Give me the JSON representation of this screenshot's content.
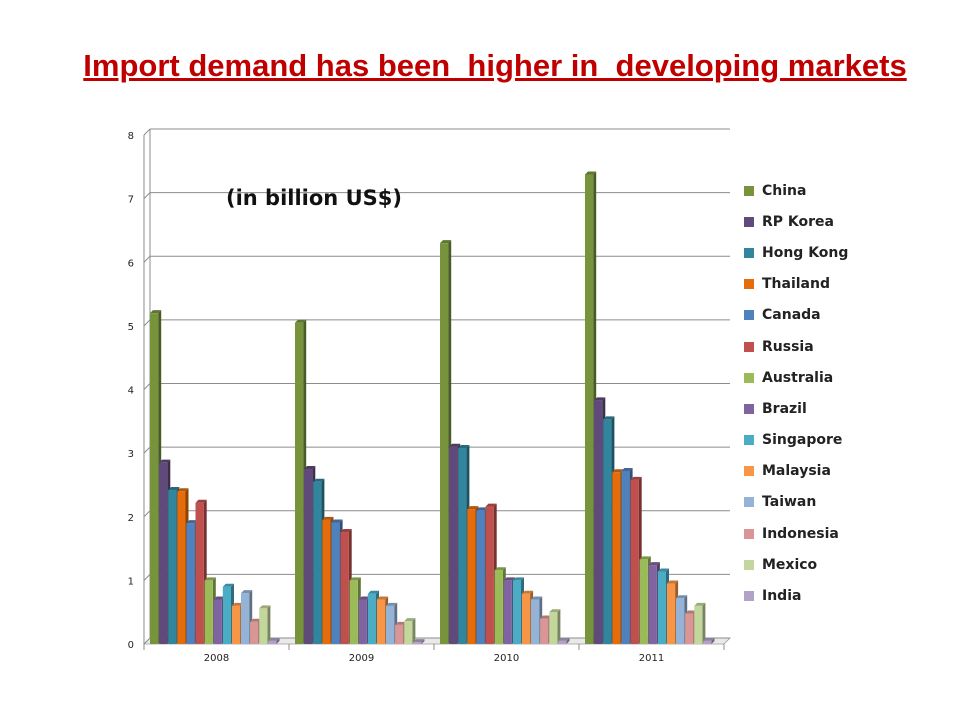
{
  "slide": {
    "title": "Import demand has been  higher in  developing markets"
  },
  "chart_data": {
    "type": "bar",
    "title": "",
    "annotation": "(in billion US$)",
    "xlabel": "",
    "ylabel": "",
    "ylim": [
      0,
      8
    ],
    "yticks": [
      "0",
      "1",
      "2",
      "3",
      "4",
      "5",
      "6",
      "7",
      "8"
    ],
    "categories": [
      "2008",
      "2009",
      "2010",
      "2011"
    ],
    "grid": true,
    "style": "3d-clustered-columns",
    "legend_position": "right",
    "series": [
      {
        "name": "China",
        "color": "#77933c",
        "values": [
          5.2,
          5.05,
          6.3,
          7.38
        ]
      },
      {
        "name": "RP Korea",
        "color": "#604a7b",
        "values": [
          2.85,
          2.75,
          3.1,
          3.83
        ]
      },
      {
        "name": "Hong Kong",
        "color": "#31859c",
        "values": [
          2.42,
          2.55,
          3.08,
          3.53
        ]
      },
      {
        "name": "Thailand",
        "color": "#e46c0a",
        "values": [
          2.4,
          1.95,
          2.12,
          2.7
        ]
      },
      {
        "name": "Canada",
        "color": "#4f81bd",
        "values": [
          1.9,
          1.91,
          2.1,
          2.72
        ]
      },
      {
        "name": "Russia",
        "color": "#c0504d",
        "values": [
          2.22,
          1.76,
          2.16,
          2.58
        ]
      },
      {
        "name": "Australia",
        "color": "#9bbb59",
        "values": [
          1.0,
          1.0,
          1.16,
          1.33
        ]
      },
      {
        "name": "Brazil",
        "color": "#8064a2",
        "values": [
          0.7,
          0.7,
          1.0,
          1.24
        ]
      },
      {
        "name": "Singapore",
        "color": "#4bacc6",
        "values": [
          0.9,
          0.79,
          1.0,
          1.14
        ]
      },
      {
        "name": "Malaysia",
        "color": "#f79646",
        "values": [
          0.6,
          0.7,
          0.79,
          0.95
        ]
      },
      {
        "name": "Taiwan",
        "color": "#95b3d7",
        "values": [
          0.8,
          0.6,
          0.7,
          0.72
        ]
      },
      {
        "name": "Indonesia",
        "color": "#d99694",
        "values": [
          0.35,
          0.3,
          0.4,
          0.48
        ]
      },
      {
        "name": "Mexico",
        "color": "#c3d69b",
        "values": [
          0.56,
          0.36,
          0.5,
          0.6
        ]
      },
      {
        "name": "India",
        "color": "#b3a2c7",
        "values": [
          0.05,
          0.03,
          0.05,
          0.05
        ]
      }
    ]
  }
}
